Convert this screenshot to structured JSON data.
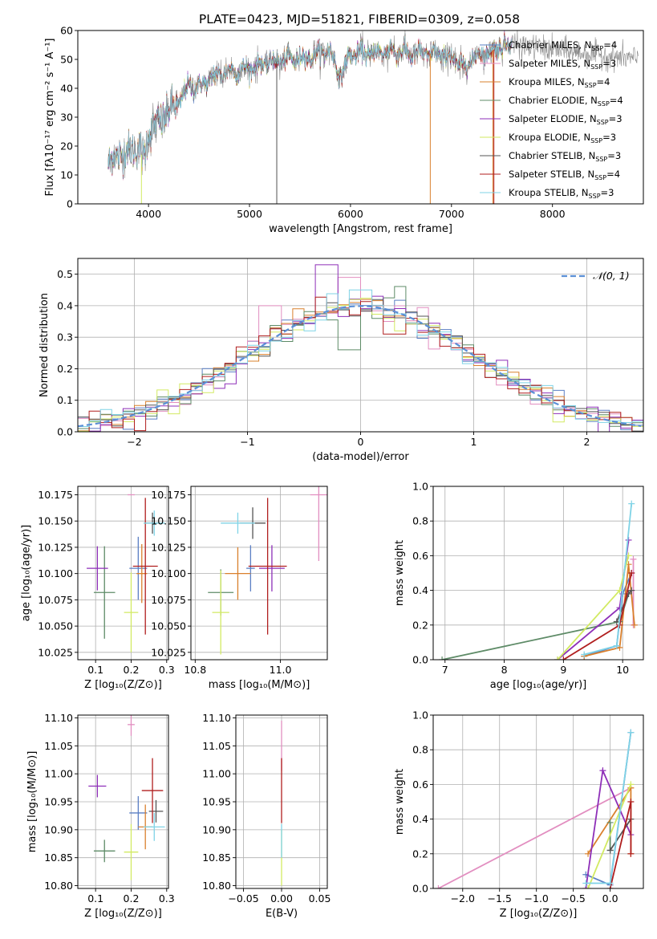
{
  "figure_title": "PLATE=0423, MJD=51821, FIBERID=0309, z=0.058",
  "models": [
    {
      "name": "Chabrier MILES, N",
      "sub": "SSP",
      "suffix": "=4",
      "color": "#5b7fc4"
    },
    {
      "name": "Salpeter MILES, N",
      "sub": "SSP",
      "suffix": "=3",
      "color": "#e28ec0"
    },
    {
      "name": "Kroupa MILES, N",
      "sub": "SSP",
      "suffix": "=4",
      "color": "#d9802d"
    },
    {
      "name": "Chabrier ELODIE, N",
      "sub": "SSP",
      "suffix": "=4",
      "color": "#5e8b67"
    },
    {
      "name": "Salpeter ELODIE, N",
      "sub": "SSP",
      "suffix": "=3",
      "color": "#8e2fb8"
    },
    {
      "name": "Kroupa ELODIE, N",
      "sub": "SSP",
      "suffix": "=3",
      "color": "#d2ea62"
    },
    {
      "name": "Chabrier STELIB, N",
      "sub": "SSP",
      "suffix": "=3",
      "color": "#555555"
    },
    {
      "name": "Salpeter STELIB, N",
      "sub": "SSP",
      "suffix": "=4",
      "color": "#b01e1e"
    },
    {
      "name": "Kroupa STELIB, N",
      "sub": "SSP",
      "suffix": "=3",
      "color": "#7fd3e6"
    }
  ],
  "chart_data": [
    {
      "id": "spectrum",
      "type": "line",
      "xlabel": "wavelength [Angstrom, rest frame]",
      "ylabel": "Flux [fλ10⁻¹⁷ erg cm⁻² s⁻¹ A⁻¹]",
      "xlim": [
        3300,
        8900
      ],
      "ylim": [
        0,
        60
      ],
      "xticks": [
        4000,
        5000,
        6000,
        7000,
        8000
      ],
      "yticks": [
        0,
        10,
        20,
        30,
        40,
        50,
        60
      ],
      "grid": false,
      "legend": "upper right",
      "continuum": {
        "x": [
          3600,
          3700,
          3800,
          3900,
          3950,
          4000,
          4100,
          4200,
          4300,
          4400,
          4500,
          4600,
          4700,
          4800,
          4900,
          5000,
          5200,
          5400,
          5600,
          5800,
          5900,
          6000,
          6200,
          6400,
          6600,
          6800,
          7000,
          7100,
          7200,
          7300,
          7400,
          7500,
          7600
        ],
        "y": [
          14,
          17,
          18,
          20,
          15,
          25,
          28,
          32,
          35,
          41,
          40,
          43,
          45,
          46,
          46,
          47,
          49,
          50,
          51,
          53,
          44,
          52,
          52,
          53,
          52,
          52,
          51,
          47,
          50,
          52,
          53,
          55,
          55
        ]
      },
      "model_extent": [
        3600,
        7600
      ],
      "data_extent": [
        3600,
        8850
      ],
      "model_spikes": [
        {
          "model": 6,
          "x": 5270,
          "y": 0
        },
        {
          "model": 2,
          "x": 6790,
          "y": 0
        },
        {
          "model": 2,
          "x": 7410,
          "y": 0
        },
        {
          "model": 7,
          "x": 7420,
          "y": 0
        },
        {
          "model": 5,
          "x": 3930,
          "y": 0
        }
      ]
    },
    {
      "id": "residual-histogram",
      "type": "histogram",
      "xlabel": "(data-model)/error",
      "ylabel": "Normed distribution",
      "xlim": [
        -2.5,
        2.5
      ],
      "ylim": [
        0,
        0.55
      ],
      "xticks": [
        -2,
        -1,
        0,
        1,
        2
      ],
      "yticks": [
        0,
        0.1,
        0.2,
        0.3,
        0.4,
        0.5
      ],
      "grid": true,
      "bin_width": 0.1,
      "reference_curve": {
        "label": "𝒩(0, 1)",
        "color": "#5b8fd6",
        "dashed": true
      },
      "outliers": [
        {
          "model": 4,
          "x": -0.3,
          "y": 0.53
        },
        {
          "model": 1,
          "x": -0.1,
          "y": 0.49
        },
        {
          "model": 3,
          "x": -0.1,
          "y": 0.26
        },
        {
          "model": 1,
          "x": -0.8,
          "y": 0.4
        },
        {
          "model": 8,
          "x": 0.0,
          "y": 0.45
        },
        {
          "model": 7,
          "x": 0.3,
          "y": 0.31
        },
        {
          "model": 2,
          "x": 1.1,
          "y": 0.21
        }
      ]
    },
    {
      "id": "age-vs-Z",
      "type": "errorbar",
      "xlabel": "Z [log₁₀(Z/Z⊙)]",
      "ylabel": "age  [log₁₀(age/yr)]",
      "xlim": [
        0.05,
        0.305
      ],
      "ylim": [
        10.018,
        10.183
      ],
      "xticks": [
        0.1,
        0.2,
        0.3
      ],
      "yticks": [
        10.025,
        10.05,
        10.075,
        10.1,
        10.125,
        10.15,
        10.175
      ],
      "grid": true,
      "points": [
        {
          "model": 0,
          "x": 0.22,
          "y": 10.105,
          "xerr": 0.025,
          "yerr": 0.03
        },
        {
          "model": 1,
          "x": 0.2,
          "y": 10.175,
          "xerr": 0.01,
          "yerr": 0.0
        },
        {
          "model": 2,
          "x": 0.23,
          "y": 10.1,
          "xerr": 0.015,
          "yerr": 0.028
        },
        {
          "model": 3,
          "x": 0.125,
          "y": 10.082,
          "xerr": 0.03,
          "yerr": 0.044
        },
        {
          "model": 4,
          "x": 0.105,
          "y": 10.105,
          "xerr": 0.03,
          "yerr": 0.021
        },
        {
          "model": 5,
          "x": 0.2,
          "y": 10.063,
          "xerr": 0.02,
          "yerr": 0.038
        },
        {
          "model": 6,
          "x": 0.26,
          "y": 10.148,
          "xerr": 0.02,
          "yerr": 0.01
        },
        {
          "model": 7,
          "x": 0.24,
          "y": 10.107,
          "xerr": 0.035,
          "yerr": 0.065
        },
        {
          "model": 8,
          "x": 0.265,
          "y": 10.148,
          "xerr": 0.03,
          "yerr": 0.012
        }
      ]
    },
    {
      "id": "age-vs-mass",
      "type": "errorbar",
      "xlabel": "mass [log₁₀(M/M⊙)]",
      "ylabel": "",
      "xlim": [
        10.79,
        11.11
      ],
      "ylim": [
        10.018,
        10.183
      ],
      "xticks": [
        10.8,
        11.0
      ],
      "yticks": [
        10.025,
        10.05,
        10.075,
        10.1,
        10.125,
        10.15,
        10.175
      ],
      "grid": true,
      "points": [
        {
          "model": 0,
          "x": 10.93,
          "y": 10.105,
          "xerr": 0.01,
          "yerr": 0.022
        },
        {
          "model": 1,
          "x": 11.09,
          "y": 10.175,
          "xerr": 0.02,
          "yerr": 0.063
        },
        {
          "model": 2,
          "x": 10.9,
          "y": 10.1,
          "xerr": 0.03,
          "yerr": 0.025
        },
        {
          "model": 3,
          "x": 10.86,
          "y": 10.082,
          "xerr": 0.03,
          "yerr": 0.022
        },
        {
          "model": 4,
          "x": 10.98,
          "y": 10.105,
          "xerr": 0.03,
          "yerr": 0.022
        },
        {
          "model": 5,
          "x": 10.86,
          "y": 10.063,
          "xerr": 0.02,
          "yerr": 0.04
        },
        {
          "model": 6,
          "x": 10.935,
          "y": 10.148,
          "xerr": 0.03,
          "yerr": 0.015
        },
        {
          "model": 7,
          "x": 10.97,
          "y": 10.107,
          "xerr": 0.045,
          "yerr": 0.065
        },
        {
          "model": 8,
          "x": 10.9,
          "y": 10.148,
          "xerr": 0.04,
          "yerr": 0.01
        }
      ]
    },
    {
      "id": "massweight-vs-age",
      "type": "line",
      "xlabel": "age  [log₁₀(age/yr)]",
      "ylabel": "mass weight",
      "xlim": [
        6.8,
        10.35
      ],
      "ylim": [
        0,
        1.0
      ],
      "xticks": [
        7,
        8,
        9,
        10
      ],
      "yticks": [
        0,
        0.2,
        0.4,
        0.6,
        0.8,
        1.0
      ],
      "grid": true,
      "series": [
        {
          "model": 0,
          "x": [
            9.35,
            9.9,
            10.0,
            10.15
          ],
          "y": [
            0.02,
            0.08,
            0.38,
            0.5
          ]
        },
        {
          "model": 1,
          "x": [
            10.18,
            10.18
          ],
          "y": [
            0.2,
            0.58
          ]
        },
        {
          "model": 2,
          "x": [
            9.35,
            9.95,
            10.1,
            10.2
          ],
          "y": [
            0.02,
            0.07,
            0.55,
            0.2
          ]
        },
        {
          "model": 3,
          "x": [
            6.95,
            9.95,
            10.1
          ],
          "y": [
            0.0,
            0.22,
            0.38
          ]
        },
        {
          "model": 4,
          "x": [
            8.9,
            9.95,
            10.1
          ],
          "y": [
            0.0,
            0.3,
            0.69
          ]
        },
        {
          "model": 5,
          "x": [
            8.9,
            9.95,
            10.1
          ],
          "y": [
            0.0,
            0.4,
            0.6
          ]
        },
        {
          "model": 6,
          "x": [
            9.9,
            10.1,
            10.15
          ],
          "y": [
            0.22,
            0.38,
            0.4
          ]
        },
        {
          "model": 7,
          "x": [
            9.0,
            9.95,
            10.15
          ],
          "y": [
            0.0,
            0.2,
            0.5
          ]
        },
        {
          "model": 8,
          "x": [
            9.35,
            9.9,
            10.15
          ],
          "y": [
            0.03,
            0.08,
            0.9
          ]
        }
      ]
    },
    {
      "id": "mass-vs-Z",
      "type": "errorbar",
      "xlabel": "Z [log₁₀(Z/Z⊙)]",
      "ylabel": "mass [log₁₀(M/M⊙)]",
      "xlim": [
        0.05,
        0.305
      ],
      "ylim": [
        10.795,
        11.105
      ],
      "xticks": [
        0.1,
        0.2,
        0.3
      ],
      "yticks": [
        10.8,
        10.85,
        10.9,
        10.95,
        11.0,
        11.05,
        11.1
      ],
      "grid": true,
      "points": [
        {
          "model": 0,
          "x": 0.22,
          "y": 10.93,
          "xerr": 0.025,
          "yerr": 0.03
        },
        {
          "model": 1,
          "x": 0.2,
          "y": 11.088,
          "xerr": 0.01,
          "yerr": 0.02
        },
        {
          "model": 2,
          "x": 0.24,
          "y": 10.905,
          "xerr": 0.02,
          "yerr": 0.04
        },
        {
          "model": 3,
          "x": 0.125,
          "y": 10.862,
          "xerr": 0.03,
          "yerr": 0.02
        },
        {
          "model": 4,
          "x": 0.105,
          "y": 10.978,
          "xerr": 0.025,
          "yerr": 0.02
        },
        {
          "model": 5,
          "x": 0.2,
          "y": 10.86,
          "xerr": 0.02,
          "yerr": 0.05
        },
        {
          "model": 6,
          "x": 0.27,
          "y": 10.933,
          "xerr": 0.02,
          "yerr": 0.02
        },
        {
          "model": 7,
          "x": 0.26,
          "y": 10.97,
          "xerr": 0.03,
          "yerr": 0.058
        },
        {
          "model": 8,
          "x": 0.265,
          "y": 10.905,
          "xerr": 0.03,
          "yerr": 0.025
        }
      ]
    },
    {
      "id": "mass-vs-EBV",
      "type": "errorbar",
      "xlabel": "E(B-V)",
      "ylabel": "",
      "xlim": [
        -0.06,
        0.06
      ],
      "ylim": [
        10.795,
        11.105
      ],
      "xticks": [
        -0.05,
        0.0,
        0.05
      ],
      "yticks": [
        10.8,
        10.85,
        10.9,
        10.95,
        11.0,
        11.05,
        11.1
      ],
      "grid": true,
      "points": [
        {
          "model": 1,
          "x": 0.0,
          "y": 11.05,
          "xerr": 0.0,
          "yerr": 0.045
        },
        {
          "model": 7,
          "x": 0.0,
          "y": 10.97,
          "xerr": 0.0,
          "yerr": 0.058
        },
        {
          "model": 5,
          "x": 0.0,
          "y": 10.85,
          "xerr": 0.0,
          "yerr": 0.05
        },
        {
          "model": 8,
          "x": 0.0,
          "y": 10.88,
          "xerr": 0.0,
          "yerr": 0.03
        }
      ]
    },
    {
      "id": "massweight-vs-Z",
      "type": "line",
      "xlabel": "Z [log₁₀(Z/Z⊙)]",
      "ylabel": "mass weight",
      "xlim": [
        -2.4,
        0.45
      ],
      "ylim": [
        0,
        1.0
      ],
      "xticks": [
        -2.0,
        -1.5,
        -1.0,
        -0.5,
        0.0
      ],
      "yticks": [
        0,
        0.2,
        0.4,
        0.6,
        0.8,
        1.0
      ],
      "grid": true,
      "series": [
        {
          "model": 0,
          "x": [
            -0.33,
            0.0,
            0.28
          ],
          "y": [
            0.08,
            0.02,
            0.9
          ]
        },
        {
          "model": 1,
          "x": [
            -2.33,
            0.28
          ],
          "y": [
            0.0,
            0.58
          ]
        },
        {
          "model": 2,
          "x": [
            -0.3,
            0.28,
            0.28
          ],
          "y": [
            0.2,
            0.58,
            0.2
          ]
        },
        {
          "model": 3,
          "x": [
            0.0,
            0.0
          ],
          "y": [
            0.22,
            0.38
          ]
        },
        {
          "model": 4,
          "x": [
            -0.33,
            -0.1,
            0.28
          ],
          "y": [
            0.0,
            0.68,
            0.31
          ]
        },
        {
          "model": 5,
          "x": [
            -0.3,
            0.28
          ],
          "y": [
            0.0,
            0.6
          ]
        },
        {
          "model": 6,
          "x": [
            0.0,
            0.28
          ],
          "y": [
            0.22,
            0.4
          ]
        },
        {
          "model": 7,
          "x": [
            0.0,
            0.28,
            0.28
          ],
          "y": [
            0.0,
            0.5,
            0.2
          ]
        },
        {
          "model": 8,
          "x": [
            -0.33,
            0.0,
            0.28
          ],
          "y": [
            0.03,
            0.03,
            0.9
          ]
        }
      ]
    }
  ]
}
